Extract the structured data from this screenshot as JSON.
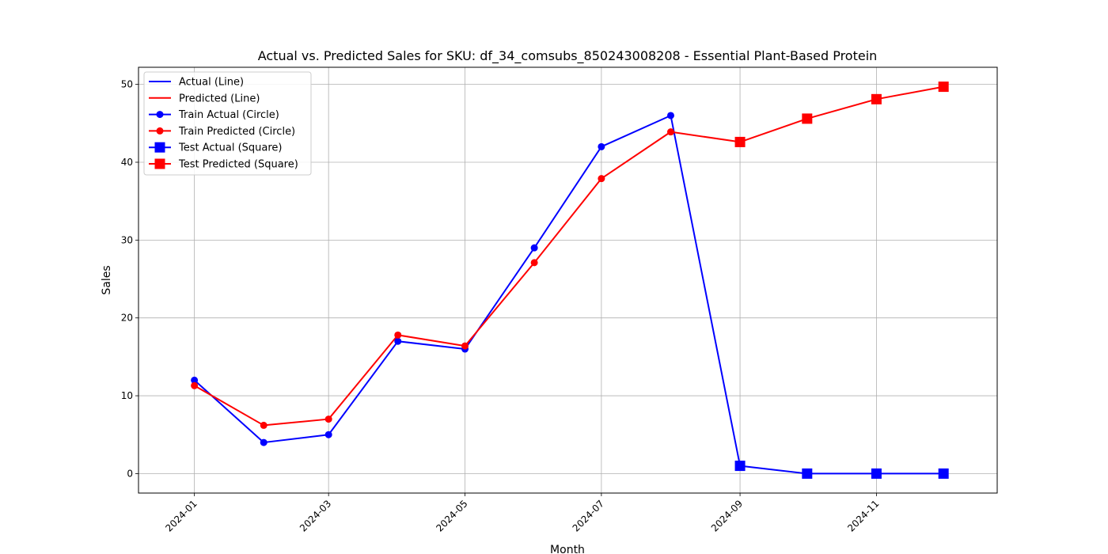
{
  "chart_data": {
    "type": "line",
    "title": "Actual vs. Predicted Sales for SKU: df_34_comsubs_850243008208 - Essential Plant-Based Protein",
    "xlabel": "Month",
    "ylabel": "Sales",
    "x": [
      "2024-01-01",
      "2024-02-01",
      "2024-03-01",
      "2024-04-01",
      "2024-05-01",
      "2024-06-01",
      "2024-07-01",
      "2024-08-01",
      "2024-09-01",
      "2024-10-01",
      "2024-11-01",
      "2024-12-01"
    ],
    "xlim": [
      "2023-12-07",
      "2024-12-25"
    ],
    "ylim": [
      -2.5,
      52.2
    ],
    "xticks": [
      "2024-01",
      "2024-03",
      "2024-05",
      "2024-07",
      "2024-09",
      "2024-11"
    ],
    "yticks": [
      0,
      10,
      20,
      30,
      40,
      50
    ],
    "grid": true,
    "legend_position": "upper left",
    "train_count": 8,
    "series": [
      {
        "name": "Actual (Line)",
        "color": "#0000ff",
        "values": [
          12,
          4,
          5,
          17,
          16,
          29,
          42,
          46,
          1,
          0,
          0,
          0
        ]
      },
      {
        "name": "Predicted (Line)",
        "color": "#ff0000",
        "values": [
          11.3,
          6.2,
          7.0,
          17.8,
          16.4,
          27.1,
          37.9,
          43.9,
          42.6,
          45.6,
          48.1,
          49.7
        ]
      }
    ],
    "legend": [
      {
        "label": "Actual (Line)",
        "color": "#0000ff",
        "marker": "none"
      },
      {
        "label": "Predicted (Line)",
        "color": "#ff0000",
        "marker": "none"
      },
      {
        "label": "Train Actual (Circle)",
        "color": "#0000ff",
        "marker": "circle"
      },
      {
        "label": "Train Predicted (Circle)",
        "color": "#ff0000",
        "marker": "circle"
      },
      {
        "label": "Test Actual (Square)",
        "color": "#0000ff",
        "marker": "square"
      },
      {
        "label": "Test Predicted (Square)",
        "color": "#ff0000",
        "marker": "square"
      }
    ]
  }
}
